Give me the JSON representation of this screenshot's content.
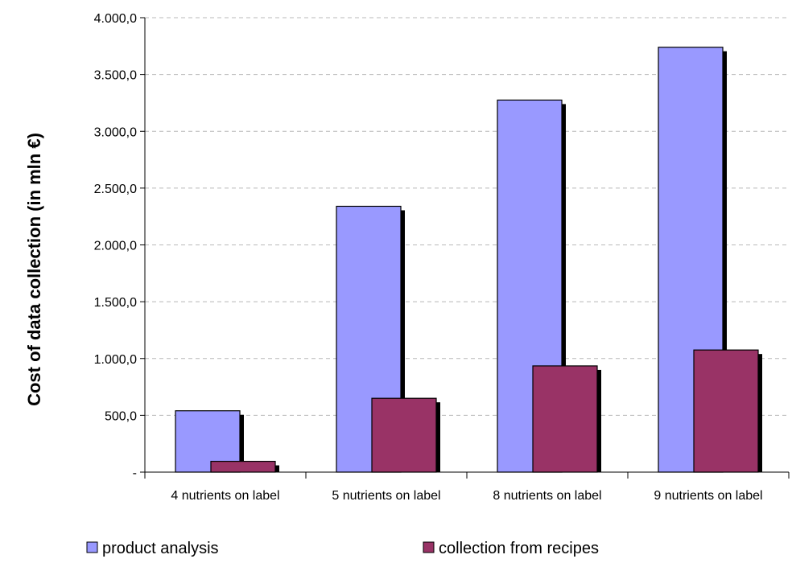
{
  "chart_data": {
    "type": "bar",
    "title": "",
    "xlabel": "",
    "ylabel": "Cost of data collection (in mln €)",
    "categories": [
      "4 nutrients on label",
      "5 nutrients on label",
      "8 nutrients on label",
      "9 nutrients on label"
    ],
    "series": [
      {
        "name": "product analysis",
        "values": [
          540,
          2340,
          3275,
          3740
        ],
        "color": "#9999ff"
      },
      {
        "name": "collection from recipes",
        "values": [
          95,
          650,
          935,
          1075
        ],
        "color": "#993366"
      }
    ],
    "ylim": [
      0,
      4000
    ],
    "yticks": [
      0,
      500,
      1000,
      1500,
      2000,
      2500,
      3000,
      3500,
      4000
    ],
    "ytick_labels": [
      "-",
      "500,0",
      "1.000,0",
      "1.500,0",
      "2.000,0",
      "2.500,0",
      "3.000,0",
      "3.500,0",
      "4.000,0"
    ],
    "grid": true,
    "legend_position": "bottom"
  }
}
